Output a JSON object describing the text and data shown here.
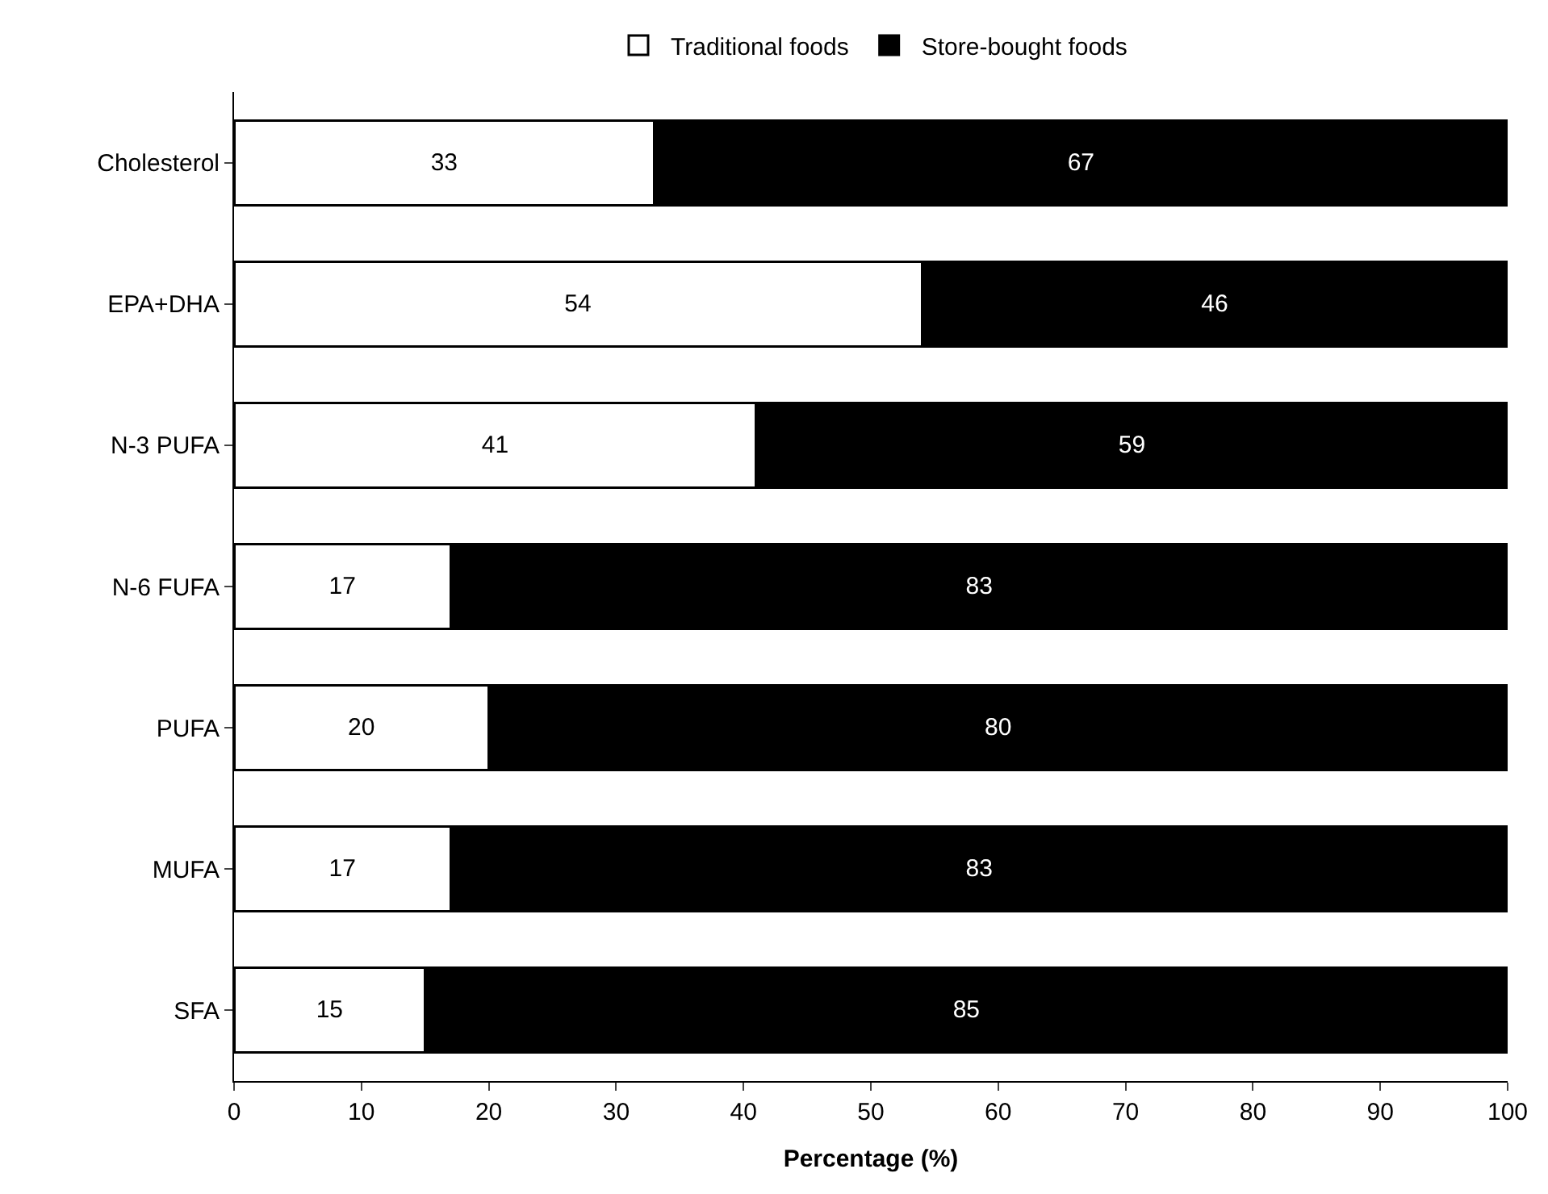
{
  "chart_data": {
    "type": "bar",
    "orientation": "horizontal",
    "stacked": true,
    "xlabel": "Percentage (%)",
    "categories": [
      "Cholesterol",
      "EPA+DHA",
      "N-3 PUFA",
      "N-6 FUFA",
      "PUFA",
      "MUFA",
      "SFA"
    ],
    "series": [
      {
        "name": "Traditional foods",
        "color": "#ffffff",
        "values": [
          33,
          54,
          41,
          17,
          20,
          17,
          15
        ]
      },
      {
        "name": "Store-bought foods",
        "color": "#000000",
        "values": [
          67,
          46,
          59,
          83,
          80,
          83,
          85
        ]
      }
    ],
    "xlim": [
      0,
      100
    ],
    "xticks": [
      0,
      10,
      20,
      30,
      40,
      50,
      60,
      70,
      80,
      90,
      100
    ],
    "data_labels": true,
    "legend": "top"
  }
}
